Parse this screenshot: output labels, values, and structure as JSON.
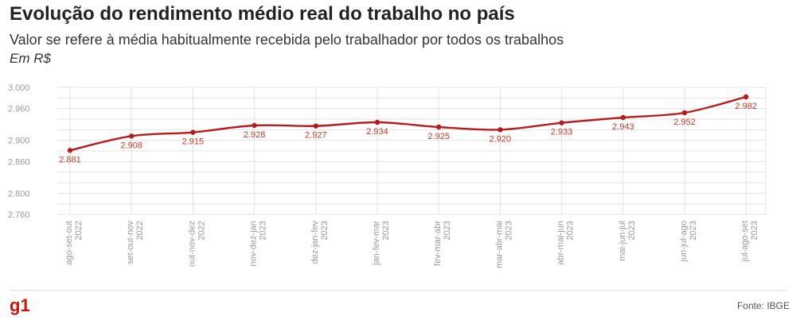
{
  "header": {
    "title": "Evolução do rendimento médio real do trabalho no país",
    "subtitle": "Valor se refere à média habitualmente recebida pelo trabalhador por todos os trabalhos",
    "unit": "Em R$"
  },
  "footer": {
    "logo": "g1",
    "source": "Fonte: IBGE"
  },
  "chart_data": {
    "type": "line",
    "title": "Evolução do rendimento médio real do trabalho no país",
    "subtitle": "Valor se refere à média habitualmente recebida pelo trabalhador por todos os trabalhos",
    "ylabel": "Em R$",
    "xlabel": "",
    "ylim": [
      2760,
      3000
    ],
    "yticks": [
      3000,
      2960,
      2900,
      2860,
      2800,
      2760
    ],
    "ytick_labels": [
      "3.000",
      "2.960",
      "2.900",
      "2.860",
      "2.800",
      "2.760"
    ],
    "grid": true,
    "categories": [
      [
        "ago-set-out",
        "2022"
      ],
      [
        "set-out-nov",
        "2022"
      ],
      [
        "out-nov-dez",
        "2022"
      ],
      [
        "nov-dez-jan",
        "2023"
      ],
      [
        "dez-jan-fev",
        "2023"
      ],
      [
        "jan-fev-mar",
        "2023"
      ],
      [
        "fev-mar-abr",
        "2023"
      ],
      [
        "mar-abr-mai",
        "2023"
      ],
      [
        "abr-mai-jun",
        "2023"
      ],
      [
        "mai-jun-jul",
        "2023"
      ],
      [
        "jun-jul-ago",
        "2023"
      ],
      [
        "jul-ago-set",
        "2023"
      ]
    ],
    "series": [
      {
        "values": [
          2881,
          2908,
          2915,
          2928,
          2927,
          2934,
          2925,
          2920,
          2933,
          2943,
          2952,
          2982
        ],
        "labels": [
          "2.881",
          "2.908",
          "2.915",
          "2.928",
          "2.927",
          "2.934",
          "2.925",
          "2.920",
          "2.933",
          "2.943",
          "2.952",
          "2.982"
        ],
        "color": "#b71c1c"
      }
    ]
  }
}
